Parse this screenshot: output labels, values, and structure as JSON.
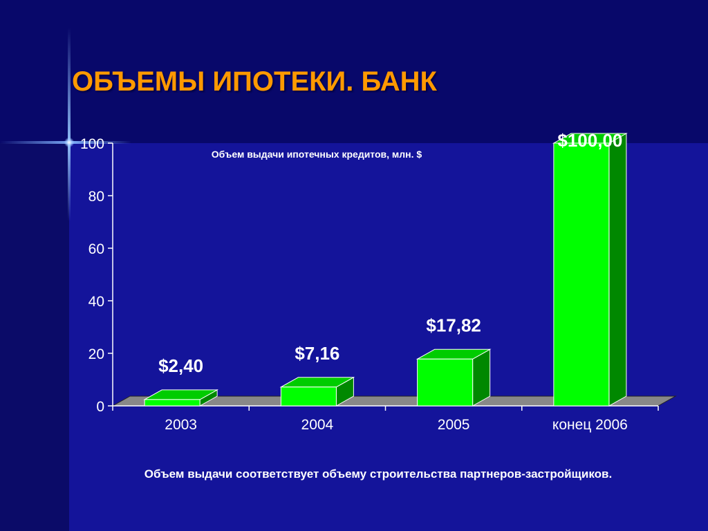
{
  "title": "ОБЪЕМЫ ИПОТЕКИ. БАНК",
  "footnote": "Объем выдачи соответствует объему строительства партнеров-застройщиков.",
  "chart_data": {
    "type": "bar",
    "title": "Объем выдачи ипотечных кредитов, млн. $",
    "categories": [
      "2003",
      "2004",
      "2005",
      "конец 2006"
    ],
    "values": [
      2.4,
      7.16,
      17.82,
      100.0
    ],
    "data_labels": [
      "$2,40",
      "$7,16",
      "$17,82",
      "$100,00"
    ],
    "ylim": [
      0,
      100
    ],
    "yticks": [
      0,
      20,
      40,
      60,
      80,
      100
    ],
    "style": "3d",
    "grid": false,
    "legend": "none",
    "colors": {
      "bar_front": "#00ff00",
      "bar_side": "#008800",
      "bar_top": "#00cc00",
      "floor": "#888888",
      "title": "#ff9900",
      "text": "#ffffff"
    }
  }
}
